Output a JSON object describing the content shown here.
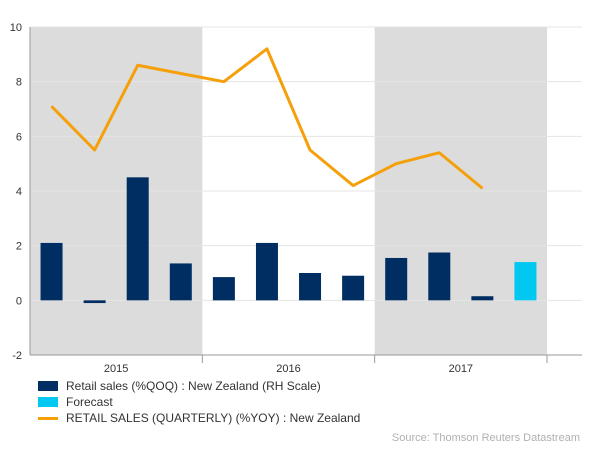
{
  "chart_data": {
    "type": "bar+line",
    "ylim": [
      -2,
      10
    ],
    "y_ticks": [
      -2,
      0,
      2,
      4,
      6,
      8,
      10
    ],
    "quarters": [
      "2015Q1",
      "2015Q2",
      "2015Q3",
      "2015Q4",
      "2016Q1",
      "2016Q2",
      "2016Q3",
      "2016Q4",
      "2017Q1",
      "2017Q2",
      "2017Q3",
      "2017Q4"
    ],
    "year_labels": [
      "2015",
      "2016",
      "2017"
    ],
    "shaded_years": [
      "2015",
      "2017"
    ],
    "series": [
      {
        "name": "Retail sales (%QOQ) : New Zealand (RH Scale)",
        "kind": "bar",
        "color": "#002D62",
        "values": [
          2.1,
          -0.1,
          4.5,
          1.35,
          0.85,
          2.1,
          1.0,
          0.9,
          1.55,
          1.75,
          0.15,
          null
        ]
      },
      {
        "name": "Forecast",
        "kind": "bar",
        "color": "#00C8F0",
        "values": [
          null,
          null,
          null,
          null,
          null,
          null,
          null,
          null,
          null,
          null,
          null,
          1.4
        ]
      },
      {
        "name": "RETAIL SALES (QUARTERLY) (%YOY) : New Zealand",
        "kind": "line",
        "color": "#F5A00A",
        "values": [
          7.1,
          5.5,
          8.6,
          8.3,
          8.0,
          9.2,
          5.5,
          4.2,
          5.0,
          5.4,
          4.1,
          null
        ]
      }
    ],
    "grid": true,
    "legend_position": "bottom-left"
  },
  "source": "Source: Thomson Reuters Datastream"
}
